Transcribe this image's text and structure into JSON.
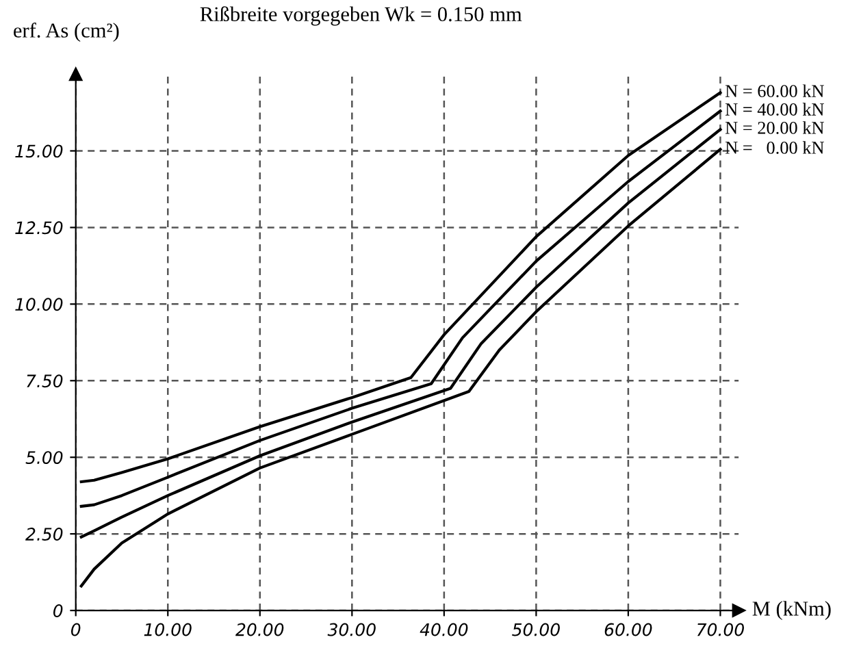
{
  "chart_data": {
    "type": "line",
    "title": "Rißbreite vorgegeben Wk = 0.150 mm",
    "xlabel": "M (kNm)",
    "ylabel": "erf. As (cm²)",
    "xlim": [
      0,
      72
    ],
    "ylim": [
      0,
      17.5
    ],
    "xticks": [
      0,
      {
        "value": 10,
        "label": "10.00"
      },
      {
        "value": 20,
        "label": "20.00"
      },
      {
        "value": 30,
        "label": "30.00"
      },
      {
        "value": 40,
        "label": "40.00"
      },
      {
        "value": 50,
        "label": "50.00"
      },
      {
        "value": 60,
        "label": "60.00"
      },
      {
        "value": 70,
        "label": "70.00"
      }
    ],
    "yticks": [
      0,
      {
        "value": 2.5,
        "label": "2.50"
      },
      {
        "value": 5,
        "label": "5.00"
      },
      {
        "value": 7.5,
        "label": "7.50"
      },
      {
        "value": 10,
        "label": "10.00"
      },
      {
        "value": 12.5,
        "label": "12.50"
      },
      {
        "value": 15,
        "label": "15.00"
      }
    ],
    "grid": true,
    "legend": false,
    "line_style": "solid",
    "marker": "none",
    "series": [
      {
        "name": "N = 60.00 kN",
        "color": "#000000",
        "x": [
          0.6,
          2,
          5,
          10,
          20,
          30,
          36.4,
          40,
          50,
          60,
          70
        ],
        "values": [
          4.2,
          4.25,
          4.5,
          4.95,
          6.0,
          6.95,
          7.6,
          9.0,
          12.2,
          14.85,
          16.9
        ]
      },
      {
        "name": "N = 40.00 kN",
        "color": "#000000",
        "x": [
          0.6,
          2,
          5,
          10,
          20,
          30,
          38.6,
          42,
          50,
          60,
          70
        ],
        "values": [
          3.4,
          3.45,
          3.75,
          4.35,
          5.55,
          6.6,
          7.4,
          8.9,
          11.4,
          14.0,
          16.3
        ]
      },
      {
        "name": "N = 20.00 kN",
        "color": "#000000",
        "x": [
          0.6,
          2,
          5,
          10,
          20,
          30,
          40.7,
          44,
          50,
          60,
          70
        ],
        "values": [
          2.4,
          2.6,
          3.05,
          3.75,
          5.05,
          6.15,
          7.25,
          8.7,
          10.55,
          13.3,
          15.7
        ]
      },
      {
        "name": "N =   0.00 kN",
        "color": "#000000",
        "x": [
          0.6,
          2,
          5,
          10,
          20,
          30,
          42.7,
          46,
          50,
          60,
          70
        ],
        "values": [
          0.8,
          1.35,
          2.2,
          3.15,
          4.65,
          5.75,
          7.15,
          8.5,
          9.75,
          12.55,
          15.05
        ]
      }
    ]
  }
}
